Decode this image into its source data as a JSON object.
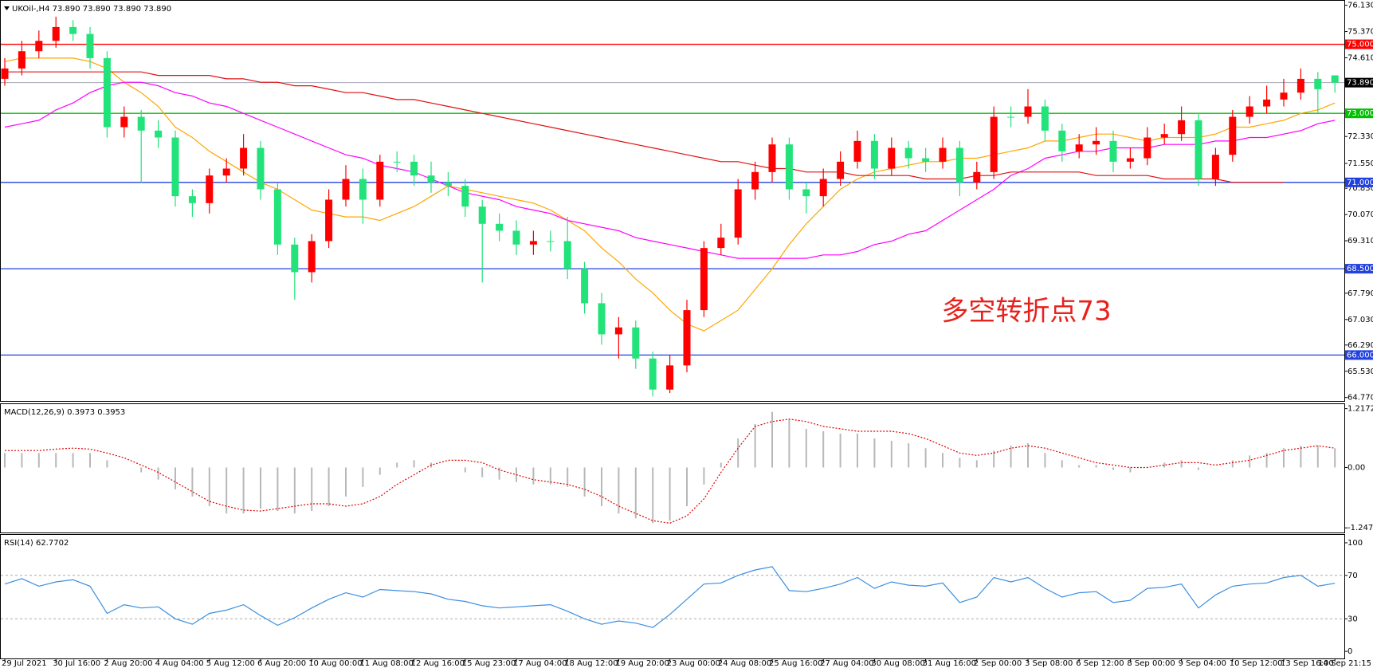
{
  "chart_data": [
    {
      "type": "candlestick",
      "title": "UKOil-,H4  73.890 73.890 73.890 73.890",
      "annotation": "多空转折点73",
      "categories": [
        "29 Jul 2021",
        null,
        null,
        "30 Jul 16:00",
        null,
        null,
        "2 Aug 20:00",
        null,
        null,
        "4 Aug 04:00",
        null,
        null,
        "5 Aug 12:00",
        null,
        null,
        "6 Aug 20:00",
        null,
        null,
        "10 Aug 00:00",
        null,
        null,
        "11 Aug 08:00",
        null,
        null,
        "12 Aug 16:00",
        null,
        null,
        "15 Aug 23:00",
        null,
        null,
        "17 Aug 04:00",
        null,
        null,
        "18 Aug 12:00",
        null,
        null,
        "19 Aug 20:00",
        null,
        null,
        "23 Aug 00:00",
        null,
        null,
        "24 Aug 08:00",
        null,
        null,
        "25 Aug 16:00",
        null,
        null,
        "27 Aug 04:00",
        null,
        null,
        "30 Aug 08:00",
        null,
        null,
        "31 Aug 16:00",
        null,
        null,
        "2 Sep 00:00",
        null,
        null,
        "3 Sep 08:00",
        null,
        null,
        "6 Sep 12:00",
        null,
        null,
        "8 Sep 00:00",
        null,
        null,
        "9 Sep 04:00",
        null,
        null,
        "10 Sep 12:00",
        null,
        null,
        "13 Sep 16:00",
        null,
        null,
        "14 Sep 21:15"
      ],
      "open": [
        74.0,
        74.3,
        74.8,
        75.1,
        75.5,
        75.3,
        74.6,
        72.6,
        72.9,
        72.5,
        72.3,
        70.6,
        70.4,
        71.2,
        71.4,
        72.0,
        70.8,
        69.2,
        68.4,
        69.3,
        70.5,
        71.1,
        70.5,
        71.6,
        71.6,
        71.2,
        71.0,
        70.9,
        70.3,
        69.8,
        69.6,
        69.2,
        69.3,
        69.3,
        68.5,
        67.5,
        66.6,
        66.8,
        65.9,
        65.0,
        65.7,
        67.3,
        69.1,
        69.4,
        70.8,
        71.3,
        72.1,
        70.8,
        70.6,
        71.1,
        71.6,
        72.2,
        71.4,
        72.0,
        71.7,
        71.6,
        72.0,
        71.0,
        71.3,
        72.9,
        72.9,
        73.2,
        72.5,
        71.9,
        72.1,
        72.2,
        71.6,
        71.7,
        72.3,
        72.4,
        72.8,
        71.1,
        71.8,
        72.9,
        73.2,
        73.4,
        73.6,
        74.0,
        74.1
      ],
      "high": [
        74.6,
        75.1,
        75.4,
        75.8,
        75.7,
        75.5,
        74.8,
        73.2,
        73.1,
        72.8,
        72.5,
        70.8,
        71.4,
        71.7,
        72.4,
        72.2,
        71.0,
        69.4,
        69.5,
        70.8,
        71.5,
        71.4,
        71.8,
        71.9,
        71.8,
        71.6,
        71.3,
        71.1,
        70.5,
        70.1,
        69.9,
        69.6,
        69.6,
        70.0,
        68.7,
        67.8,
        67.1,
        67.0,
        66.1,
        66.0,
        67.6,
        69.3,
        69.8,
        71.1,
        71.6,
        72.3,
        72.3,
        71.0,
        71.4,
        71.9,
        72.5,
        72.4,
        72.3,
        72.2,
        72.0,
        72.3,
        72.2,
        71.6,
        73.2,
        73.2,
        73.7,
        73.4,
        72.7,
        72.4,
        72.6,
        72.5,
        72.0,
        72.6,
        72.7,
        73.2,
        73.0,
        72.0,
        73.1,
        73.5,
        73.8,
        74.0,
        74.3,
        74.2,
        74.1
      ],
      "low": [
        73.8,
        74.1,
        74.6,
        74.9,
        75.1,
        74.3,
        72.3,
        72.3,
        71.0,
        72.0,
        70.3,
        70.0,
        70.1,
        71.0,
        71.2,
        70.5,
        68.9,
        67.6,
        68.1,
        69.1,
        70.3,
        69.8,
        70.3,
        71.3,
        70.9,
        70.7,
        70.6,
        70.0,
        68.1,
        69.3,
        68.9,
        68.9,
        69.0,
        68.2,
        67.2,
        66.3,
        65.9,
        65.6,
        64.8,
        64.9,
        65.5,
        67.1,
        68.9,
        69.2,
        70.5,
        71.0,
        70.5,
        70.1,
        70.3,
        70.9,
        71.4,
        71.1,
        71.2,
        71.4,
        71.3,
        71.4,
        70.6,
        70.8,
        71.1,
        72.6,
        72.7,
        72.2,
        71.6,
        71.7,
        71.8,
        71.3,
        71.4,
        71.5,
        72.1,
        72.2,
        70.9,
        70.9,
        71.6,
        72.7,
        73.0,
        73.2,
        73.4,
        73.0,
        73.6
      ],
      "close": [
        74.3,
        74.8,
        75.1,
        75.5,
        75.3,
        74.6,
        72.6,
        72.9,
        72.5,
        72.3,
        70.6,
        70.4,
        71.2,
        71.4,
        72.0,
        70.8,
        69.2,
        68.4,
        69.3,
        70.5,
        71.1,
        70.5,
        71.6,
        71.6,
        71.2,
        71.0,
        70.9,
        70.3,
        69.8,
        69.6,
        69.2,
        69.3,
        69.3,
        68.5,
        67.5,
        66.6,
        66.8,
        65.9,
        65.0,
        65.7,
        67.3,
        69.1,
        69.4,
        70.8,
        71.3,
        72.1,
        70.8,
        70.6,
        71.1,
        71.6,
        72.2,
        71.4,
        72.0,
        71.7,
        71.6,
        72.0,
        71.0,
        71.3,
        72.9,
        72.9,
        73.2,
        72.5,
        71.9,
        72.1,
        72.2,
        71.6,
        71.7,
        72.3,
        72.4,
        72.8,
        71.1,
        71.8,
        72.9,
        73.2,
        73.4,
        73.6,
        74.0,
        73.7,
        73.89
      ],
      "up_color": "#ff0000",
      "down_color": "#22e37a",
      "series": [
        {
          "color": "#ffa500",
          "values": [
            74.5,
            74.6,
            74.6,
            74.6,
            74.6,
            74.5,
            74.3,
            73.9,
            73.6,
            73.2,
            72.6,
            72.3,
            71.9,
            71.6,
            71.3,
            71.0,
            70.8,
            70.5,
            70.2,
            70.1,
            70.0,
            70.0,
            69.9,
            70.1,
            70.3,
            70.6,
            70.9,
            70.8,
            70.7,
            70.6,
            70.5,
            70.4,
            70.2,
            69.9,
            69.6,
            69.1,
            68.7,
            68.2,
            67.8,
            67.3,
            66.9,
            66.7,
            67.0,
            67.3,
            67.9,
            68.5,
            69.2,
            69.8,
            70.3,
            70.8,
            71.1,
            71.3,
            71.4,
            71.5,
            71.6,
            71.6,
            71.7,
            71.7,
            71.8,
            71.9,
            72.0,
            72.2,
            72.2,
            72.3,
            72.4,
            72.4,
            72.3,
            72.2,
            72.3,
            72.3,
            72.3,
            72.4,
            72.6,
            72.6,
            72.7,
            72.8,
            73.0,
            73.1,
            73.3
          ]
        },
        {
          "color": "#ff00ff",
          "values": [
            72.6,
            72.7,
            72.8,
            73.1,
            73.3,
            73.6,
            73.8,
            73.9,
            73.9,
            73.8,
            73.6,
            73.5,
            73.3,
            73.2,
            73.0,
            72.8,
            72.6,
            72.4,
            72.2,
            72.0,
            71.8,
            71.7,
            71.5,
            71.4,
            71.3,
            71.1,
            70.9,
            70.7,
            70.6,
            70.5,
            70.3,
            70.2,
            70.1,
            69.9,
            69.8,
            69.7,
            69.6,
            69.4,
            69.3,
            69.2,
            69.1,
            69.0,
            68.9,
            68.8,
            68.8,
            68.8,
            68.8,
            68.8,
            68.9,
            68.9,
            69.0,
            69.2,
            69.3,
            69.5,
            69.6,
            69.9,
            70.2,
            70.5,
            70.8,
            71.2,
            71.4,
            71.7,
            71.8,
            71.9,
            71.9,
            72.0,
            72.0,
            72.0,
            72.1,
            72.1,
            72.1,
            72.2,
            72.2,
            72.3,
            72.3,
            72.4,
            72.5,
            72.7,
            72.8
          ]
        },
        {
          "color": "#e01010",
          "values": [
            74.2,
            74.2,
            74.2,
            74.2,
            74.2,
            74.2,
            74.2,
            74.2,
            74.2,
            74.1,
            74.1,
            74.1,
            74.1,
            74.0,
            74.0,
            73.9,
            73.9,
            73.8,
            73.8,
            73.7,
            73.6,
            73.6,
            73.5,
            73.4,
            73.4,
            73.3,
            73.2,
            73.1,
            73.0,
            72.9,
            72.8,
            72.7,
            72.6,
            72.5,
            72.4,
            72.3,
            72.2,
            72.1,
            72.0,
            71.9,
            71.8,
            71.7,
            71.6,
            71.6,
            71.5,
            71.4,
            71.4,
            71.3,
            71.3,
            71.3,
            71.2,
            71.2,
            71.2,
            71.2,
            71.1,
            71.1,
            71.1,
            71.2,
            71.2,
            71.3,
            71.3,
            71.3,
            71.3,
            71.3,
            71.2,
            71.2,
            71.2,
            71.2,
            71.1,
            71.1,
            71.1,
            71.1,
            71.0,
            71.0,
            71.0,
            71.0,
            null,
            null,
            null
          ]
        }
      ],
      "levels": [
        {
          "value": 75,
          "label": "75.000",
          "color": "#ff0000"
        },
        {
          "value": 73,
          "label": "73.000",
          "color": "#00c000"
        },
        {
          "value": 71,
          "label": "71.000",
          "color": "#2040e0"
        },
        {
          "value": 68.5,
          "label": "68.500",
          "color": "#2040e0"
        },
        {
          "value": 66,
          "label": "66.000",
          "color": "#2040e0"
        }
      ],
      "last_price": {
        "value": 73.89,
        "label": "73.890",
        "color": "#a8a8b8"
      },
      "ylim": [
        64.67,
        76.26
      ],
      "yticks": [
        {
          "value": 76.13,
          "label": "76.130"
        },
        {
          "value": 75.37,
          "label": "75.370"
        },
        {
          "value": 74.61,
          "label": "74.610"
        },
        {
          "value": 72.33,
          "label": "72.330"
        },
        {
          "value": 71.55,
          "label": "71.550"
        },
        {
          "value": 70.83,
          "label": "70.830"
        },
        {
          "value": 70.07,
          "label": "70.070"
        },
        {
          "value": 69.31,
          "label": "69.310"
        },
        {
          "value": 67.79,
          "label": "67.790"
        },
        {
          "value": 67.03,
          "label": "67.030"
        },
        {
          "value": 66.29,
          "label": "66.290"
        },
        {
          "value": 65.53,
          "label": "65.530"
        },
        {
          "value": 64.77,
          "label": "64.770"
        }
      ]
    },
    {
      "type": "macd",
      "title": "MACD(12,26,9) 0.3973 0.3953",
      "histogram": {
        "color": "#b8b8b8",
        "values": [
          0.3,
          0.3,
          0.3,
          0.3,
          0.3,
          0.3,
          0.15,
          0.0,
          -0.1,
          -0.25,
          -0.45,
          -0.6,
          -0.8,
          -0.95,
          -0.95,
          -0.85,
          -0.9,
          -0.95,
          -0.9,
          -0.8,
          -0.6,
          -0.4,
          -0.15,
          0.1,
          0.15,
          0.1,
          0.0,
          -0.1,
          -0.2,
          -0.25,
          -0.3,
          -0.35,
          -0.35,
          -0.4,
          -0.6,
          -0.8,
          -0.95,
          -1.05,
          -1.15,
          -1.1,
          -0.8,
          -0.35,
          0.1,
          0.6,
          0.9,
          1.15,
          1.0,
          0.8,
          0.75,
          0.7,
          0.7,
          0.6,
          0.55,
          0.5,
          0.4,
          0.3,
          0.2,
          0.15,
          0.35,
          0.45,
          0.5,
          0.3,
          0.15,
          0.05,
          0.05,
          -0.05,
          -0.1,
          0.0,
          0.1,
          0.15,
          -0.05,
          0.0,
          0.15,
          0.25,
          0.3,
          0.4,
          0.45,
          0.45,
          0.4
        ]
      },
      "signal": {
        "color": "#e00000",
        "values": [
          0.35,
          0.35,
          0.35,
          0.38,
          0.4,
          0.38,
          0.3,
          0.2,
          0.05,
          -0.1,
          -0.3,
          -0.5,
          -0.7,
          -0.8,
          -0.88,
          -0.9,
          -0.85,
          -0.8,
          -0.75,
          -0.75,
          -0.8,
          -0.75,
          -0.6,
          -0.35,
          -0.15,
          0.05,
          0.15,
          0.15,
          0.1,
          -0.05,
          -0.15,
          -0.25,
          -0.3,
          -0.35,
          -0.45,
          -0.6,
          -0.8,
          -0.95,
          -1.1,
          -1.15,
          -1.0,
          -0.65,
          -0.1,
          0.4,
          0.85,
          0.95,
          1.0,
          0.95,
          0.85,
          0.8,
          0.75,
          0.75,
          0.75,
          0.7,
          0.6,
          0.45,
          0.3,
          0.25,
          0.3,
          0.4,
          0.45,
          0.4,
          0.3,
          0.2,
          0.1,
          0.05,
          0.0,
          0.0,
          0.05,
          0.1,
          0.1,
          0.05,
          0.1,
          0.15,
          0.25,
          0.35,
          0.4,
          0.45,
          0.4
        ]
      },
      "ylim": [
        -1.36,
        1.31
      ],
      "yticks": [
        1.2172,
        {
          "value": 0,
          "label": "0.00"
        },
        -1.2479
      ]
    },
    {
      "type": "line",
      "title": "RSI(14) 62.7702",
      "color": "#3a8fe0",
      "values": [
        62,
        67,
        60,
        64,
        66,
        60,
        35,
        43,
        40,
        41,
        30,
        25,
        35,
        38,
        43,
        33,
        24,
        31,
        40,
        48,
        54,
        50,
        57,
        56,
        55,
        53,
        48,
        46,
        42,
        40,
        41,
        42,
        43,
        37,
        30,
        25,
        28,
        26,
        22,
        34,
        48,
        62,
        63,
        70,
        75,
        78,
        56,
        55,
        58,
        62,
        68,
        58,
        64,
        61,
        60,
        63,
        45,
        50,
        68,
        64,
        68,
        58,
        50,
        54,
        55,
        45,
        47,
        58,
        59,
        62,
        40,
        52,
        60,
        62,
        63,
        68,
        70,
        60,
        62.7702
      ],
      "levels": [
        70,
        30
      ],
      "ylim": [
        -6.5,
        107.3
      ],
      "yticks": [
        100,
        70,
        30,
        0
      ]
    }
  ]
}
